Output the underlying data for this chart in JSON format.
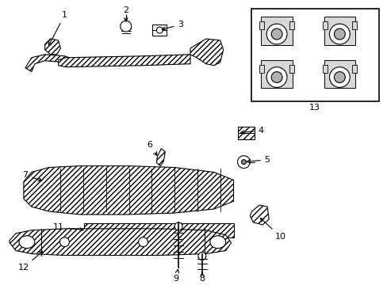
{
  "background_color": "#ffffff",
  "line_color": "#000000",
  "text_color": "#000000"
}
